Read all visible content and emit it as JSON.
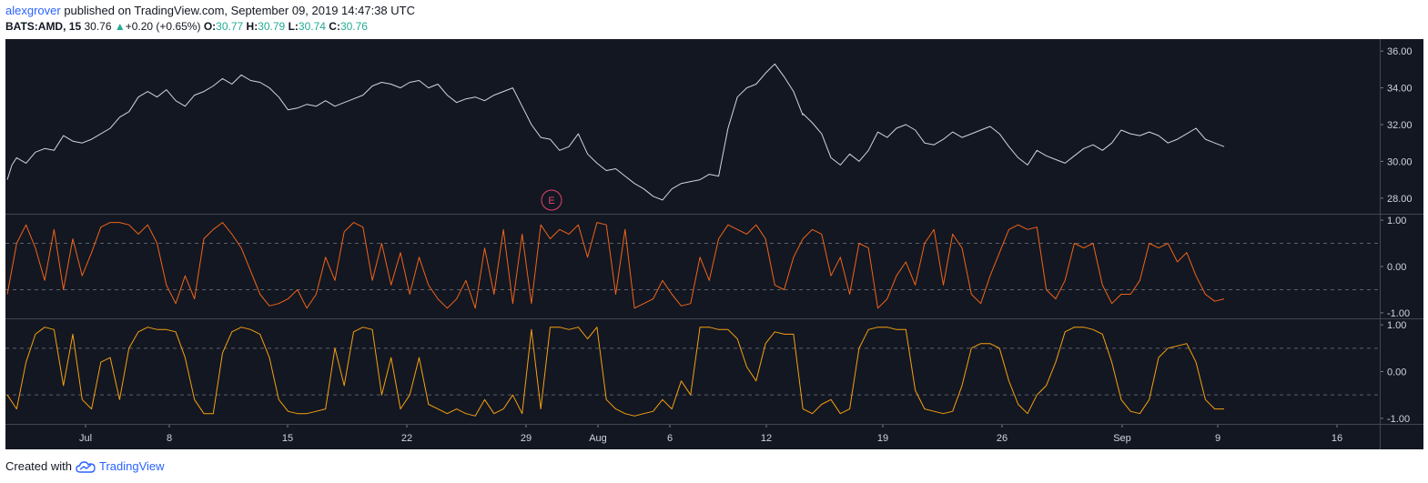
{
  "header": {
    "author": "alexgrover",
    "published_text": " published on TradingView.com, September 09, 2019 14:47:38 UTC"
  },
  "symbol_bar": {
    "symbol": "BATS:AMD, 15",
    "last": "30.76",
    "change": "+0.20 (+0.65%)",
    "o_label": "O:",
    "o_value": "30.77",
    "h_label": "H:",
    "h_value": "30.79",
    "l_label": "L:",
    "l_value": "30.74",
    "c_label": "C:",
    "c_value": "30.76"
  },
  "footer": {
    "created_with": "Created with",
    "brand": "TradingView",
    "logo_icon": "tradingview-cloud-icon"
  },
  "colors": {
    "background": "#131722",
    "price_line": "#d1d4dc",
    "osc1": "#f06418",
    "osc2": "#f5a00f",
    "earnings": "#e0446a"
  },
  "earnings_marker": {
    "label": "E",
    "date": "Jul 30"
  },
  "chart_data": [
    {
      "type": "line",
      "name": "price",
      "grid": false,
      "legend": "none",
      "ylim": [
        27.2,
        36.6
      ],
      "y_ticks": [
        "36.00",
        "34.00",
        "32.00",
        "30.00",
        "28.00"
      ],
      "y_tick_values": [
        36,
        34,
        32,
        30,
        28
      ],
      "x_tick_labels": [
        "Jul",
        "8",
        "15",
        "22",
        "29",
        "Aug",
        "6",
        "12",
        "19",
        "26",
        "Sep",
        "9",
        "16"
      ],
      "series": [
        {
          "segments": [
            {
              "x": [
                0,
                1,
                2,
                4,
                6,
                8,
                10,
                12,
                14,
                16,
                18,
                20,
                22,
                24,
                26,
                28,
                30,
                32,
                34,
                36,
                38,
                40,
                42,
                44,
                46,
                48,
                50,
                52,
                54,
                56,
                58,
                60,
                62,
                64,
                66,
                68,
                70,
                72,
                74,
                76,
                78,
                80,
                82,
                84,
                86,
                88,
                90,
                92,
                94,
                96,
                98,
                100,
                102,
                104,
                106,
                108,
                110,
                112,
                114,
                116,
                118,
                120,
                122,
                124,
                126,
                128,
                130,
                132,
                134,
                136,
                138,
                140,
                142,
                144,
                146,
                148,
                150,
                152,
                154,
                156,
                158,
                160,
                162,
                164,
                166,
                168,
                170
              ],
              "y": [
                29.0,
                29.8,
                30.2,
                29.9,
                30.5,
                30.7,
                30.6,
                31.4,
                31.1,
                31.0,
                31.2,
                31.5,
                31.8,
                32.4,
                32.7,
                33.5,
                33.8,
                33.5,
                33.9,
                33.3,
                33.0,
                33.6,
                33.8,
                34.1,
                34.5,
                34.2,
                34.7,
                34.4,
                34.3,
                34.0,
                33.5,
                32.8,
                32.9,
                33.1,
                33.0,
                33.3,
                33.0,
                33.2,
                33.4,
                33.6,
                34.1,
                34.3,
                34.2,
                34.0,
                34.3,
                34.4,
                34.0,
                34.2,
                33.6,
                33.2,
                33.4,
                33.5,
                33.3,
                33.6,
                33.8,
                34.0,
                33.0,
                32.0,
                31.3,
                31.2,
                30.6,
                30.8,
                31.5,
                30.4,
                29.9,
                29.5,
                29.6,
                29.2,
                28.8,
                28.5,
                28.1,
                27.9,
                28.5,
                28.8,
                28.9,
                29.0,
                29.3,
                29.2,
                31.8,
                33.5,
                34.0,
                34.2,
                34.8,
                35.3,
                34.6,
                33.8,
                32.5
              ]
            },
            {
              "x": [
                170,
                172,
                174,
                176,
                178,
                180,
                182,
                184,
                186,
                188,
                190,
                192,
                194,
                196,
                198,
                200,
                202,
                204,
                206,
                208,
                210,
                212,
                214,
                216,
                218,
                220,
                222,
                224,
                226,
                228,
                230,
                232,
                234,
                236,
                238,
                240,
                242,
                244,
                246,
                248,
                250,
                252,
                254,
                256,
                258,
                260
              ],
              "y": [
                32.6,
                32.1,
                31.5,
                30.2,
                29.8,
                30.4,
                30.0,
                30.6,
                31.6,
                31.3,
                31.8,
                32.0,
                31.7,
                31.0,
                30.9,
                31.2,
                31.6,
                31.3,
                31.5,
                31.7,
                31.9,
                31.5,
                30.8,
                30.2,
                29.8,
                30.6,
                30.3,
                30.1,
                29.9,
                30.3,
                30.7,
                30.9,
                30.6,
                31.0,
                31.7,
                31.5,
                31.4,
                31.6,
                31.4,
                31.0,
                31.2,
                31.5,
                31.8,
                31.2,
                31.0,
                30.8
              ]
            }
          ]
        }
      ]
    },
    {
      "type": "line",
      "name": "oscillator-1",
      "grid": false,
      "legend": "none",
      "ylim": [
        -1.1,
        1.1
      ],
      "y_ticks": [
        "1.00",
        "0.00",
        "-1.00"
      ],
      "y_tick_values": [
        1,
        0,
        -1
      ],
      "ref_lines": [
        0.5,
        -0.5
      ],
      "series": [
        {
          "segments": [
            {
              "x": [
                0,
                2,
                4,
                6,
                8,
                10,
                12,
                14,
                16,
                18,
                20,
                22,
                24,
                26,
                28,
                30,
                32,
                34,
                36,
                38,
                40,
                42,
                44,
                46,
                48,
                50,
                52,
                54,
                56,
                58,
                60,
                62,
                64,
                66,
                68,
                70,
                72,
                74,
                76,
                78,
                80,
                82,
                84,
                86,
                88,
                90,
                92,
                94,
                96,
                98,
                100,
                102,
                104,
                106,
                108,
                110,
                112,
                114,
                116,
                118,
                120,
                122,
                124,
                126,
                128,
                130,
                132,
                134,
                136,
                138,
                140,
                142,
                144,
                146,
                148,
                150,
                152,
                154,
                156,
                158,
                160,
                162,
                164,
                166,
                168,
                170,
                172,
                174,
                176,
                178,
                180,
                182,
                184,
                186,
                188,
                190,
                192,
                194,
                196,
                198,
                200,
                202,
                204,
                206,
                208,
                210,
                212,
                214,
                216,
                218,
                220,
                222,
                224,
                226,
                228,
                230,
                232,
                234,
                236,
                238,
                240,
                242,
                244,
                246,
                248,
                250,
                252,
                254,
                256,
                258,
                260
              ],
              "y": [
                -0.6,
                0.5,
                0.9,
                0.4,
                -0.3,
                0.8,
                -0.5,
                0.6,
                -0.2,
                0.3,
                0.85,
                0.95,
                0.95,
                0.9,
                0.7,
                0.9,
                0.5,
                -0.4,
                -0.8,
                -0.2,
                -0.7,
                0.6,
                0.8,
                0.95,
                0.7,
                0.4,
                -0.1,
                -0.6,
                -0.85,
                -0.8,
                -0.7,
                -0.5,
                -0.9,
                -0.6,
                0.2,
                -0.3,
                0.75,
                0.95,
                0.85,
                -0.3,
                0.5,
                -0.4,
                0.3,
                -0.6,
                0.2,
                -0.4,
                -0.7,
                -0.9,
                -0.7,
                -0.3,
                -0.9,
                0.4,
                -0.6,
                0.8,
                -0.8,
                0.7,
                -0.8,
                0.9,
                0.6,
                0.8,
                0.7,
                0.9,
                0.2,
                0.95,
                0.9,
                -0.6,
                0.8,
                -0.9,
                -0.8,
                -0.7,
                -0.3,
                -0.6,
                -0.85,
                -0.8,
                0.2,
                -0.3,
                0.6,
                0.9,
                0.8,
                0.7,
                0.9,
                0.6,
                -0.4,
                -0.5,
                0.2,
                0.6,
                0.8,
                0.7,
                -0.2,
                0.2,
                -0.6,
                0.5,
                0.4,
                -0.9,
                -0.7,
                -0.2,
                0.1,
                -0.4,
                0.5,
                0.8,
                -0.4,
                0.7,
                0.4,
                -0.6,
                -0.8,
                -0.2,
                0.3,
                0.8,
                0.9,
                0.8,
                0.85,
                -0.5,
                -0.7,
                -0.3,
                0.5,
                0.4,
                0.5,
                -0.4,
                -0.8,
                -0.6,
                -0.6,
                -0.3,
                0.5,
                0.4,
                0.5,
                0.1,
                0.3,
                -0.2,
                -0.6,
                -0.75,
                -0.7
              ]
            }
          ]
        }
      ]
    },
    {
      "type": "line",
      "name": "oscillator-2",
      "grid": false,
      "legend": "none",
      "ylim": [
        -1.1,
        1.1
      ],
      "y_ticks": [
        "1.00",
        "0.00",
        "-1.00"
      ],
      "y_tick_values": [
        1,
        0,
        -1
      ],
      "ref_lines": [
        0.5,
        -0.5
      ],
      "series": [
        {
          "segments": [
            {
              "x": [
                0,
                2,
                4,
                6,
                8,
                10,
                12,
                14,
                16,
                18,
                20,
                22,
                24,
                26,
                28,
                30,
                32,
                34,
                36,
                38,
                40,
                42,
                44,
                46,
                48,
                50,
                52,
                54,
                56,
                58,
                60,
                62,
                64,
                66,
                68,
                70,
                72,
                74,
                76,
                78,
                80,
                82,
                84,
                86,
                88,
                90,
                92,
                94,
                96,
                98,
                100,
                102,
                104,
                106,
                108,
                110,
                112,
                114,
                116,
                118,
                120,
                122,
                124,
                126,
                128,
                130,
                132,
                134,
                136,
                138,
                140,
                142,
                144,
                146,
                148,
                150,
                152,
                154,
                156,
                158,
                160,
                162,
                164,
                166,
                168,
                170,
                172,
                174,
                176,
                178,
                180,
                182,
                184,
                186,
                188,
                190,
                192,
                194,
                196,
                198,
                200,
                202,
                204,
                206,
                208,
                210,
                212,
                214,
                216,
                218,
                220,
                222,
                224,
                226,
                228,
                230,
                232,
                234,
                236,
                238,
                240,
                242,
                244,
                246,
                248,
                250,
                252,
                254,
                256,
                258,
                260
              ],
              "y": [
                -0.5,
                -0.8,
                0.2,
                0.8,
                0.95,
                0.9,
                -0.3,
                0.8,
                -0.6,
                -0.8,
                0.2,
                0.3,
                -0.6,
                0.5,
                0.85,
                0.95,
                0.9,
                0.9,
                0.85,
                0.3,
                -0.6,
                -0.9,
                -0.9,
                0.4,
                0.85,
                0.95,
                0.9,
                0.8,
                0.3,
                -0.6,
                -0.85,
                -0.9,
                -0.9,
                -0.85,
                -0.8,
                0.5,
                -0.3,
                0.85,
                0.95,
                0.9,
                -0.5,
                0.3,
                -0.8,
                -0.5,
                0.3,
                -0.7,
                -0.8,
                -0.9,
                -0.8,
                -0.9,
                -0.95,
                -0.6,
                -0.9,
                -0.8,
                -0.5,
                -0.9,
                0.9,
                -0.8,
                0.95,
                0.95,
                0.9,
                0.95,
                0.7,
                0.95,
                -0.6,
                -0.8,
                -0.9,
                -0.95,
                -0.9,
                -0.85,
                -0.6,
                -0.8,
                -0.2,
                -0.5,
                0.95,
                0.95,
                0.9,
                0.9,
                0.7,
                0.1,
                -0.2,
                0.6,
                0.85,
                0.8,
                0.8,
                -0.8,
                -0.9,
                -0.7,
                -0.6,
                -0.9,
                -0.8,
                0.5,
                0.9,
                0.95,
                0.95,
                0.9,
                0.9,
                -0.4,
                -0.8,
                -0.85,
                -0.9,
                -0.85,
                -0.3,
                0.5,
                0.6,
                0.6,
                0.5,
                -0.2,
                -0.7,
                -0.9,
                -0.5,
                -0.3,
                0.2,
                0.85,
                0.95,
                0.95,
                0.9,
                0.8,
                0.2,
                -0.6,
                -0.85,
                -0.9,
                -0.6,
                0.3,
                0.5,
                0.55,
                0.6,
                0.2,
                -0.6,
                -0.8,
                -0.8
              ]
            }
          ]
        }
      ]
    }
  ]
}
